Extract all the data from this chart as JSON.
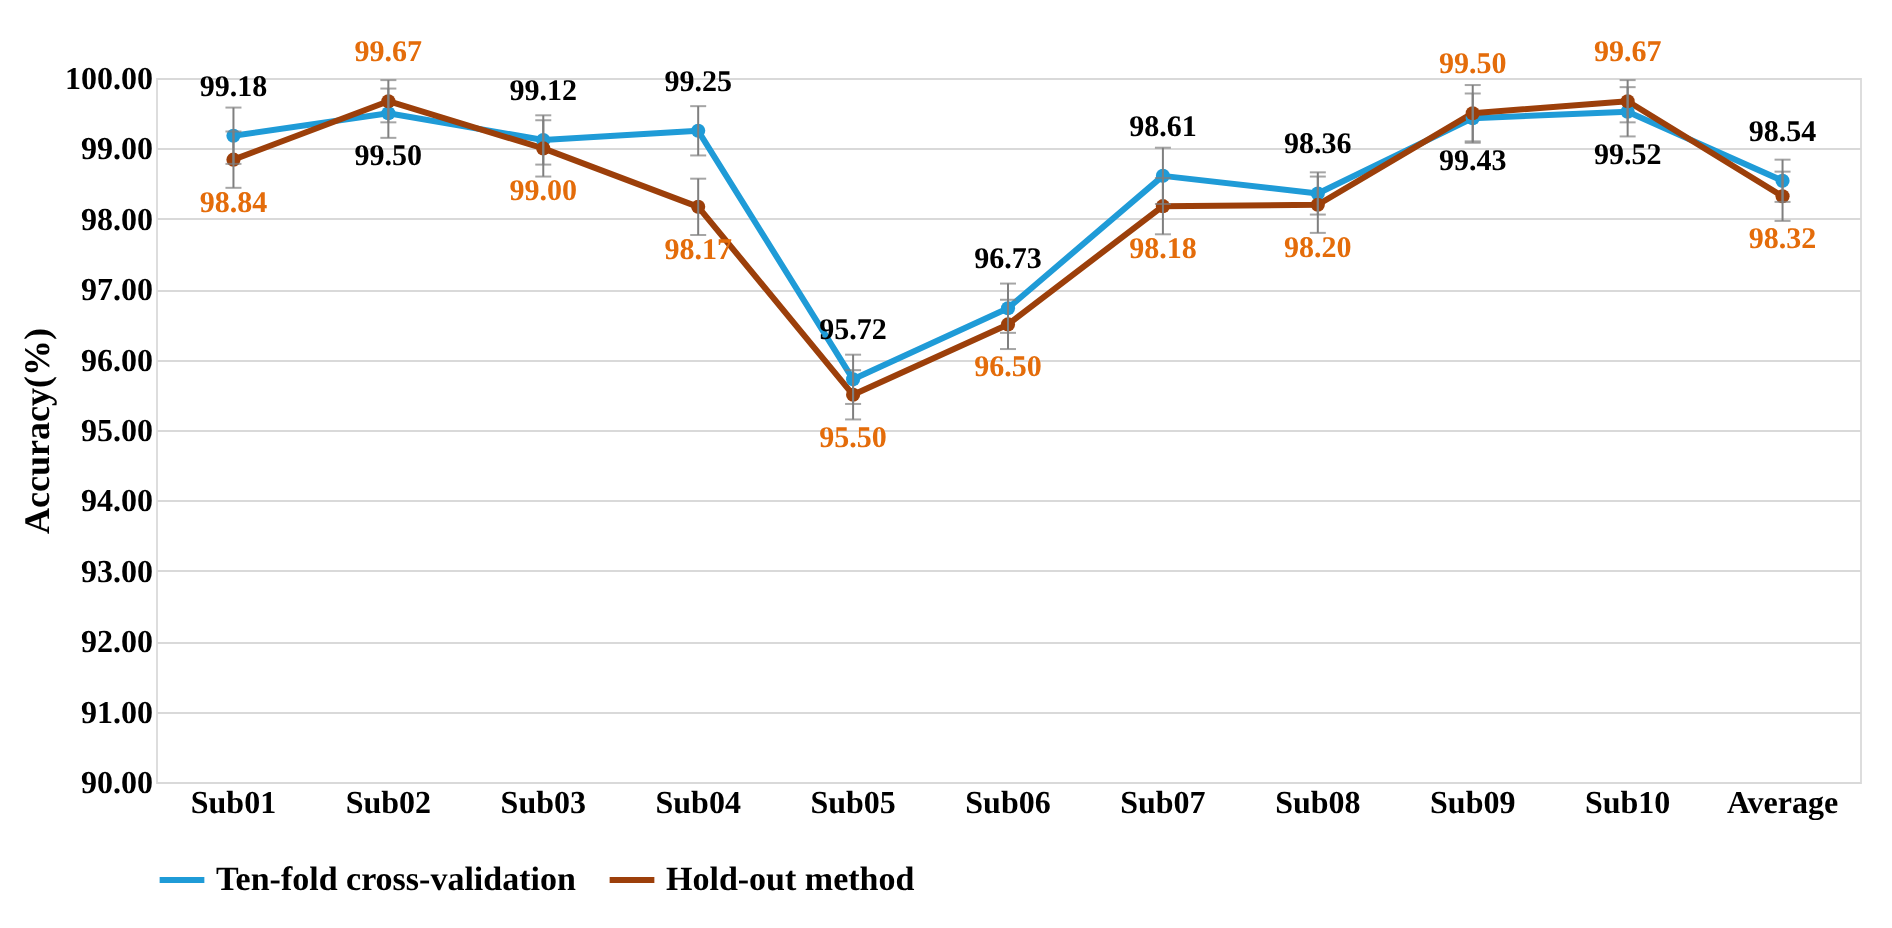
{
  "chart_data": {
    "type": "line",
    "ylabel": "Accuracy(%)",
    "categories": [
      "Sub01",
      "Sub02",
      "Sub03",
      "Sub04",
      "Sub05",
      "Sub06",
      "Sub07",
      "Sub08",
      "Sub09",
      "Sub10",
      "Average"
    ],
    "series": [
      {
        "name": "Ten-fold cross-validation",
        "color": "#1f9bd7",
        "values": [
          99.18,
          99.5,
          99.12,
          99.25,
          95.72,
          96.73,
          98.61,
          98.36,
          99.43,
          99.52,
          98.54
        ],
        "value_labels": [
          "99.18",
          "99.50",
          "99.12",
          "99.25",
          "95.72",
          "96.73",
          "98.61",
          "98.36",
          "99.43",
          "99.52",
          "98.54"
        ],
        "errors": [
          0.4,
          0.35,
          0.35,
          0.35,
          0.35,
          0.35,
          0.4,
          0.3,
          0.35,
          0.35,
          0.3
        ]
      },
      {
        "name": "Hold-out method",
        "color": "#9c3f0a",
        "values": [
          98.84,
          99.67,
          99.0,
          98.17,
          95.5,
          96.5,
          98.18,
          98.2,
          99.5,
          99.67,
          98.32
        ],
        "value_labels": [
          "98.84",
          "99.67",
          "99.00",
          "98.17",
          "95.50",
          "96.50",
          "98.18",
          "98.20",
          "99.50",
          "99.67",
          "98.32"
        ],
        "errors": [
          0.4,
          0.3,
          0.4,
          0.4,
          0.35,
          0.35,
          0.4,
          0.4,
          0.4,
          0.3,
          0.35
        ]
      }
    ],
    "ylim": [
      90,
      100
    ],
    "yticks": [
      {
        "value": 90,
        "label": "90.00"
      },
      {
        "value": 91,
        "label": "91.00"
      },
      {
        "value": 92,
        "label": "92.00"
      },
      {
        "value": 93,
        "label": "93.00"
      },
      {
        "value": 94,
        "label": "94.00"
      },
      {
        "value": 95,
        "label": "95.00"
      },
      {
        "value": 96,
        "label": "96.00"
      },
      {
        "value": 97,
        "label": "97.00"
      },
      {
        "value": 98,
        "label": "98.00"
      },
      {
        "value": 99,
        "label": "99.00"
      },
      {
        "value": 100,
        "label": "100.00"
      }
    ],
    "grid": "y",
    "legend": "bottom",
    "marker": "circle",
    "line_style": "solid"
  }
}
